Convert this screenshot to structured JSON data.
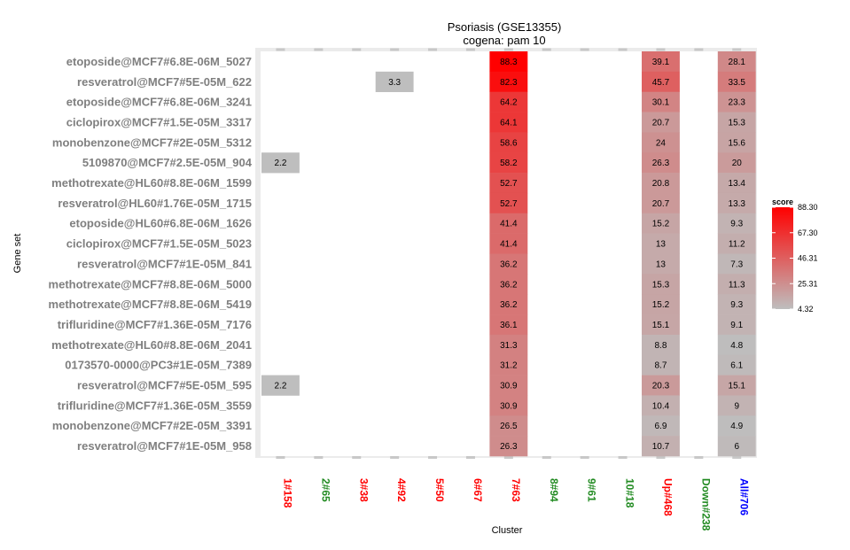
{
  "chart_data": {
    "type": "heatmap",
    "title": "Psoriasis (GSE13355)",
    "subtitle": "cogena: pam 10",
    "xlabel": "Cluster",
    "ylabel": "Gene set",
    "clusters": [
      {
        "label": "1#158",
        "color": "#ff0000"
      },
      {
        "label": "2#65",
        "color": "#228b22"
      },
      {
        "label": "3#38",
        "color": "#ff0000"
      },
      {
        "label": "4#92",
        "color": "#ff0000"
      },
      {
        "label": "5#50",
        "color": "#ff0000"
      },
      {
        "label": "6#67",
        "color": "#ff0000"
      },
      {
        "label": "7#63",
        "color": "#ff0000"
      },
      {
        "label": "8#94",
        "color": "#228b22"
      },
      {
        "label": "9#61",
        "color": "#228b22"
      },
      {
        "label": "10#18",
        "color": "#228b22"
      },
      {
        "label": "Up#468",
        "color": "#ff0000"
      },
      {
        "label": "Down#238",
        "color": "#228b22"
      },
      {
        "label": "All#706",
        "color": "#0000ff"
      }
    ],
    "gene_sets": [
      "etoposide@MCF7#6.8E-06M_5027",
      "resveratrol@MCF7#5E-05M_622",
      "etoposide@MCF7#6.8E-06M_3241",
      "ciclopirox@MCF7#1.5E-05M_3317",
      "monobenzone@MCF7#2E-05M_5312",
      "5109870@MCF7#2.5E-05M_904",
      "methotrexate@HL60#8.8E-06M_1599",
      "resveratrol@HL60#1.76E-05M_1715",
      "etoposide@HL60#6.8E-06M_1626",
      "ciclopirox@MCF7#1.5E-05M_5023",
      "resveratrol@MCF7#1E-05M_841",
      "methotrexate@MCF7#8.8E-06M_5000",
      "methotrexate@MCF7#8.8E-06M_5419",
      "trifluridine@MCF7#1.36E-05M_7176",
      "methotrexate@HL60#8.8E-06M_2041",
      "0173570-0000@PC3#1E-05M_7389",
      "resveratrol@MCF7#5E-05M_595",
      "trifluridine@MCF7#1.36E-05M_3559",
      "monobenzone@MCF7#2E-05M_3391",
      "resveratrol@MCF7#1E-05M_958"
    ],
    "cells": [
      {
        "row": 0,
        "col": 6,
        "value": 88.3
      },
      {
        "row": 0,
        "col": 10,
        "value": 39.1
      },
      {
        "row": 0,
        "col": 12,
        "value": 28.1
      },
      {
        "row": 1,
        "col": 3,
        "value": 3.3
      },
      {
        "row": 1,
        "col": 6,
        "value": 82.3
      },
      {
        "row": 1,
        "col": 10,
        "value": 45.7
      },
      {
        "row": 1,
        "col": 12,
        "value": 33.5
      },
      {
        "row": 2,
        "col": 6,
        "value": 64.2
      },
      {
        "row": 2,
        "col": 10,
        "value": 30.1
      },
      {
        "row": 2,
        "col": 12,
        "value": 23.3
      },
      {
        "row": 3,
        "col": 6,
        "value": 64.1
      },
      {
        "row": 3,
        "col": 10,
        "value": 20.7
      },
      {
        "row": 3,
        "col": 12,
        "value": 15.3
      },
      {
        "row": 4,
        "col": 6,
        "value": 58.6
      },
      {
        "row": 4,
        "col": 10,
        "value": 24
      },
      {
        "row": 4,
        "col": 12,
        "value": 15.6
      },
      {
        "row": 5,
        "col": 0,
        "value": 2.2
      },
      {
        "row": 5,
        "col": 6,
        "value": 58.2
      },
      {
        "row": 5,
        "col": 10,
        "value": 26.3
      },
      {
        "row": 5,
        "col": 12,
        "value": 20
      },
      {
        "row": 6,
        "col": 6,
        "value": 52.7
      },
      {
        "row": 6,
        "col": 10,
        "value": 20.8
      },
      {
        "row": 6,
        "col": 12,
        "value": 13.4
      },
      {
        "row": 7,
        "col": 6,
        "value": 52.7
      },
      {
        "row": 7,
        "col": 10,
        "value": 20.7
      },
      {
        "row": 7,
        "col": 12,
        "value": 13.3
      },
      {
        "row": 8,
        "col": 6,
        "value": 41.4
      },
      {
        "row": 8,
        "col": 10,
        "value": 15.2
      },
      {
        "row": 8,
        "col": 12,
        "value": 9.3
      },
      {
        "row": 9,
        "col": 6,
        "value": 41.4
      },
      {
        "row": 9,
        "col": 10,
        "value": 13
      },
      {
        "row": 9,
        "col": 12,
        "value": 11.2
      },
      {
        "row": 10,
        "col": 6,
        "value": 36.2
      },
      {
        "row": 10,
        "col": 10,
        "value": 13
      },
      {
        "row": 10,
        "col": 12,
        "value": 7.3
      },
      {
        "row": 11,
        "col": 6,
        "value": 36.2
      },
      {
        "row": 11,
        "col": 10,
        "value": 15.3
      },
      {
        "row": 11,
        "col": 12,
        "value": 11.3
      },
      {
        "row": 12,
        "col": 6,
        "value": 36.2
      },
      {
        "row": 12,
        "col": 10,
        "value": 15.2
      },
      {
        "row": 12,
        "col": 12,
        "value": 9.3
      },
      {
        "row": 13,
        "col": 6,
        "value": 36.1
      },
      {
        "row": 13,
        "col": 10,
        "value": 15.1
      },
      {
        "row": 13,
        "col": 12,
        "value": 9.1
      },
      {
        "row": 14,
        "col": 6,
        "value": 31.3
      },
      {
        "row": 14,
        "col": 10,
        "value": 8.8
      },
      {
        "row": 14,
        "col": 12,
        "value": 4.8
      },
      {
        "row": 15,
        "col": 6,
        "value": 31.2
      },
      {
        "row": 15,
        "col": 10,
        "value": 8.7
      },
      {
        "row": 15,
        "col": 12,
        "value": 6.1
      },
      {
        "row": 16,
        "col": 0,
        "value": 2.2
      },
      {
        "row": 16,
        "col": 6,
        "value": 30.9
      },
      {
        "row": 16,
        "col": 10,
        "value": 20.3
      },
      {
        "row": 16,
        "col": 12,
        "value": 15.1
      },
      {
        "row": 17,
        "col": 6,
        "value": 30.9
      },
      {
        "row": 17,
        "col": 10,
        "value": 10.4
      },
      {
        "row": 17,
        "col": 12,
        "value": 9
      },
      {
        "row": 18,
        "col": 6,
        "value": 26.5
      },
      {
        "row": 18,
        "col": 10,
        "value": 6.9
      },
      {
        "row": 18,
        "col": 12,
        "value": 4.9
      },
      {
        "row": 19,
        "col": 6,
        "value": 26.3
      },
      {
        "row": 19,
        "col": 10,
        "value": 10.7
      },
      {
        "row": 19,
        "col": 12,
        "value": 6
      }
    ],
    "legend": {
      "title": "score",
      "ticks": [
        "88.30",
        "67.30",
        "46.31",
        "25.31",
        "4.32"
      ],
      "min": 4.32,
      "max": 88.3,
      "low_color": "#bebebe",
      "high_color": "#ff0000",
      "position": "right"
    }
  }
}
